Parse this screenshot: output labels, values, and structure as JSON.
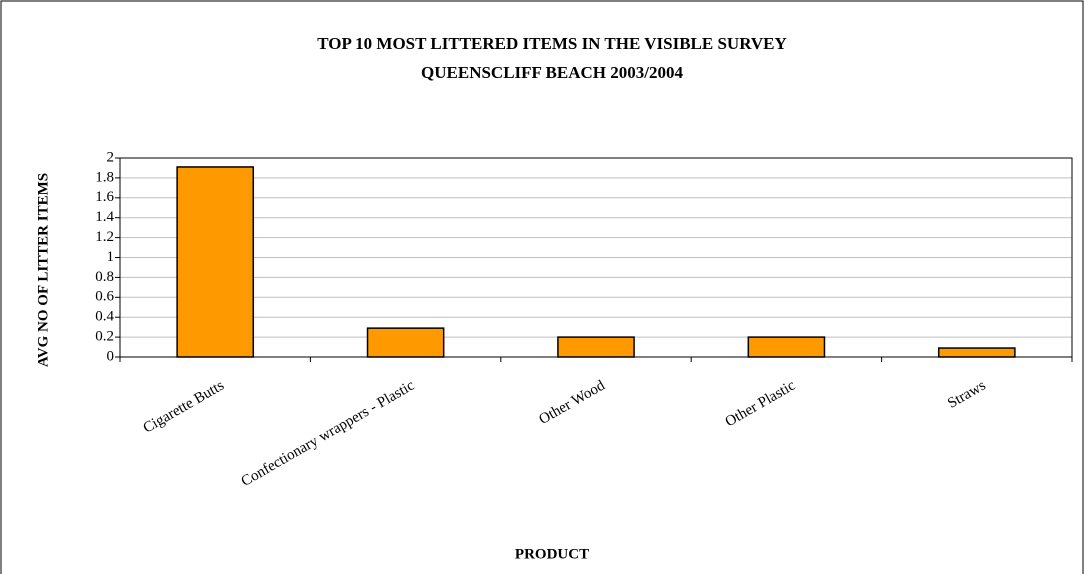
{
  "chart_data": {
    "type": "bar",
    "title": "TOP 10 MOST LITTERED ITEMS IN THE VISIBLE SURVEY",
    "subtitle": "QUEENSCLIFF BEACH 2003/2004",
    "x_label": "PRODUCT",
    "y_label": "AVG NO OF LITTER ITEMS",
    "categories": [
      "Cigarette Butts",
      "Confectionary wrappers - Plastic",
      "Other Wood",
      "Other Plastic",
      "Straws"
    ],
    "values": [
      1.91,
      0.29,
      0.2,
      0.2,
      0.09
    ],
    "color": "#ff9900",
    "ylim": [
      0,
      2
    ],
    "yticks": [
      0,
      0.2,
      0.4,
      0.6,
      0.8,
      1,
      1.2,
      1.4,
      1.6,
      1.8,
      2
    ],
    "grid": true
  }
}
